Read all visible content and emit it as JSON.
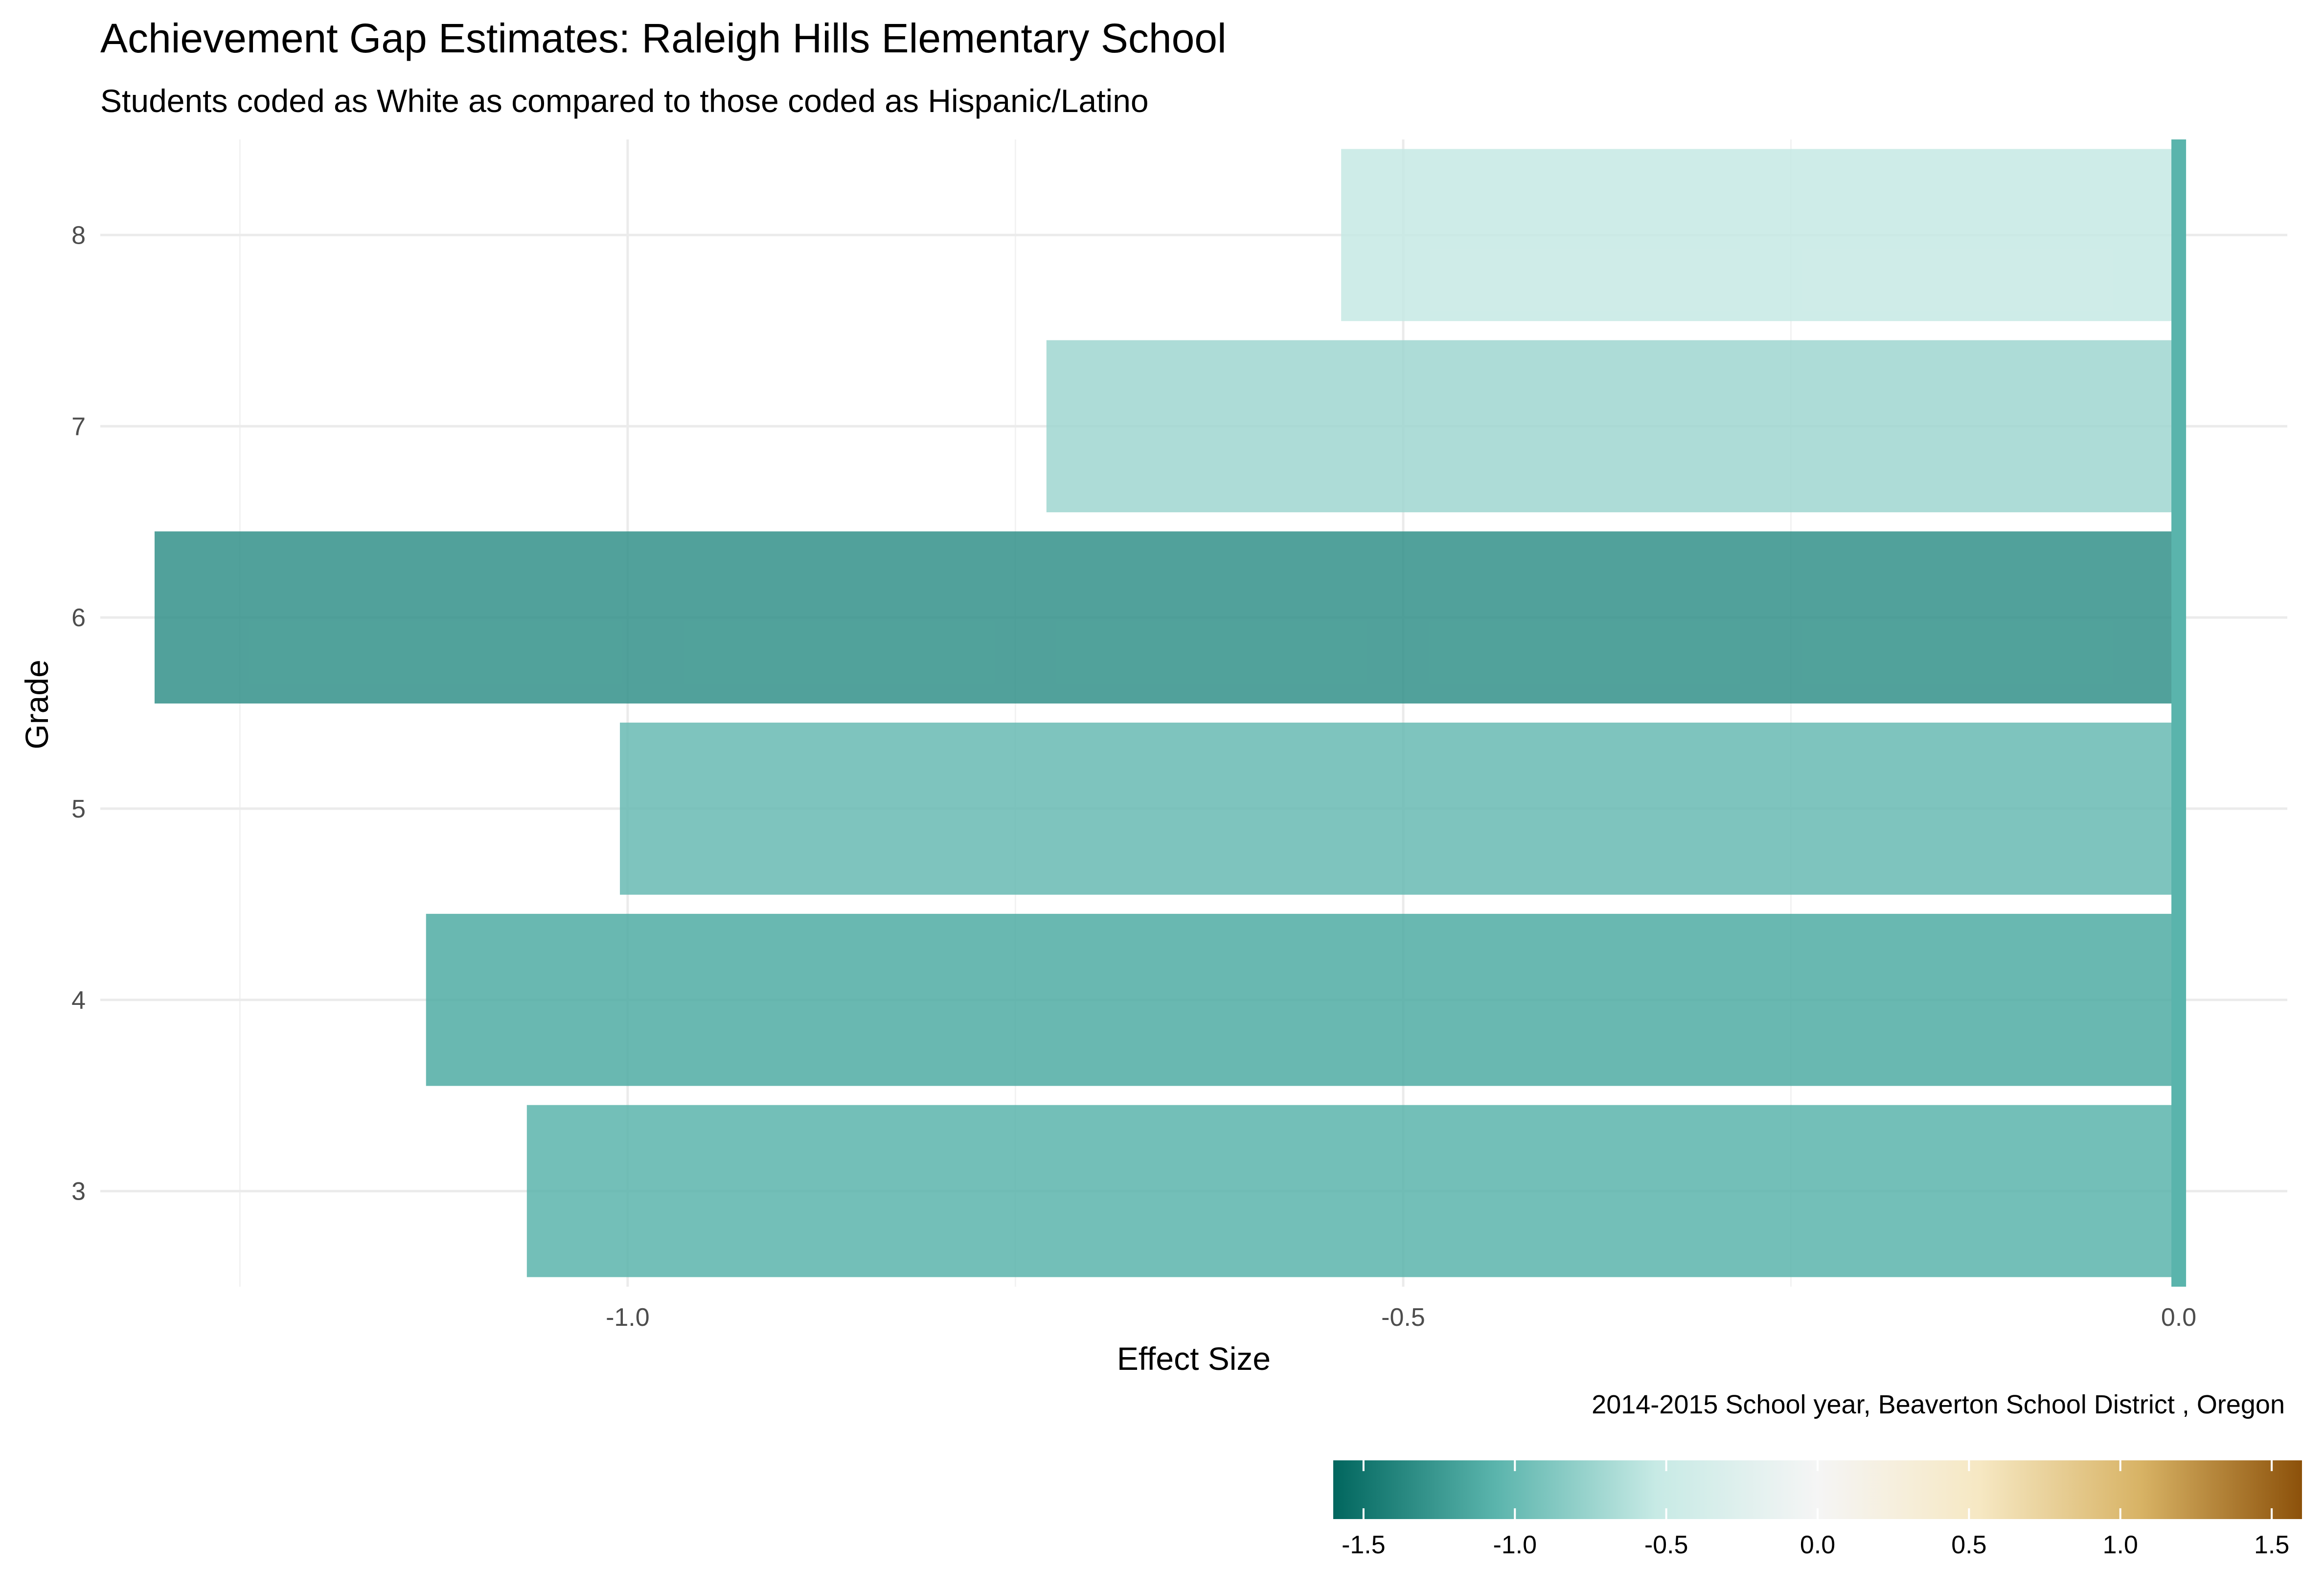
{
  "chart_data": {
    "type": "bar",
    "orientation": "horizontal",
    "title": "Achievement Gap Estimates: Raleigh Hills Elementary School",
    "subtitle": "Students coded as White as compared to those coded as Hispanic/Latino",
    "xlabel": "Effect Size",
    "ylabel": "Grade",
    "caption": "2014-2015 School year,  Beaverton School District , Oregon",
    "categories": [
      "3",
      "4",
      "5",
      "6",
      "7",
      "8"
    ],
    "values": [
      -1.065,
      -1.13,
      -1.005,
      -1.305,
      -0.73,
      -0.54
    ],
    "xlim": [
      -1.34,
      0.07
    ],
    "x_ticks": [
      -1.0,
      -0.5,
      0.0
    ],
    "x_tick_labels": [
      "-1.0",
      "-0.5",
      "0.0"
    ],
    "grid": true,
    "zero_line_color": "#5ab4ac",
    "legend": {
      "type": "colorbar",
      "position": "bottom-right",
      "range": [
        -1.6,
        1.6
      ],
      "ticks": [
        -1.5,
        -1.0,
        -0.5,
        0.0,
        0.5,
        1.0,
        1.5
      ],
      "tick_labels": [
        "-1.5",
        "-1.0",
        "-0.5",
        "0.0",
        "0.5",
        "1.0",
        "1.5"
      ],
      "colors": [
        "#01665e",
        "#5ab4ac",
        "#c7eae5",
        "#f5f5f5",
        "#f6e8c3",
        "#d8b365",
        "#8c510a"
      ]
    }
  }
}
